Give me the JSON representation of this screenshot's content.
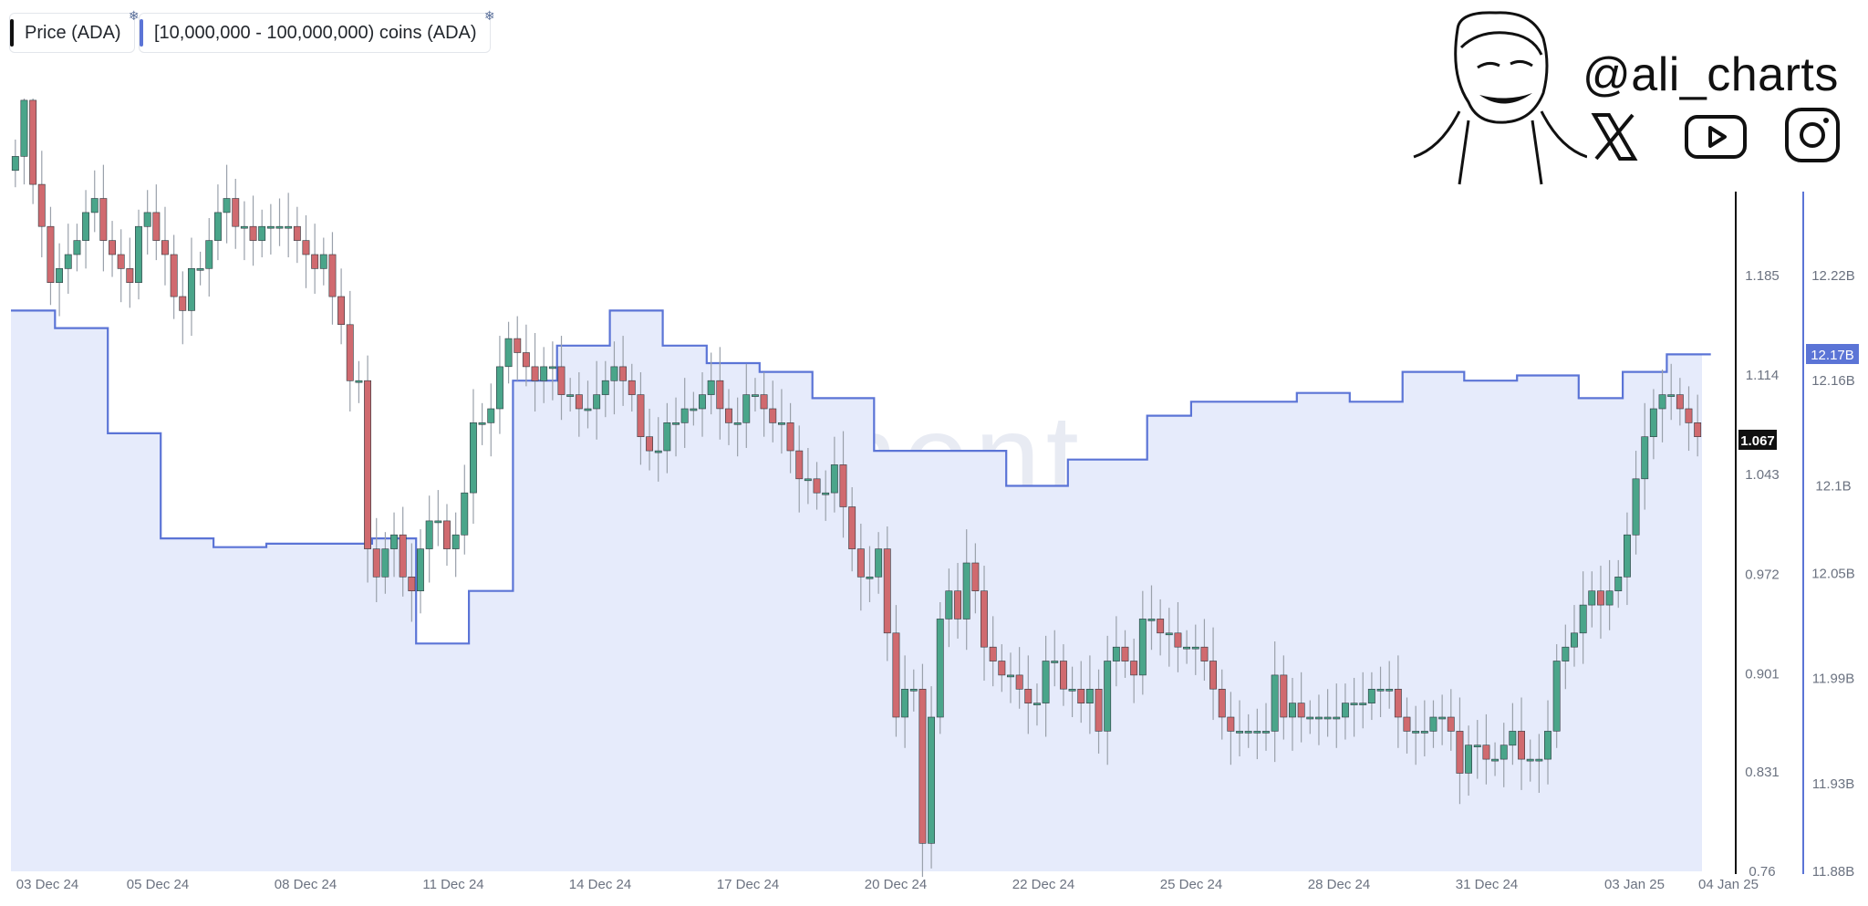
{
  "legend": {
    "price_label": "Price (ADA)",
    "holders_label": "[10,000,000 - 100,000,000) coins (ADA)",
    "price_color": "#111111",
    "holders_color": "#5b74d6"
  },
  "brand": {
    "handle": "@ali_charts",
    "icons": [
      "face-sketch-icon",
      "x-logo-icon",
      "youtube-icon",
      "instagram-icon"
    ]
  },
  "watermark": "santiment",
  "chart_data": {
    "type": "candlestick+area",
    "price_axis": {
      "ticks": [
        "1.185",
        "1.114",
        "1.043",
        "0.972",
        "0.901",
        "0.831",
        "0.76"
      ],
      "min": 0.76,
      "max": 1.185
    },
    "holders_axis": {
      "ticks": [
        "12.22B",
        "12.16B",
        "12.1B",
        "12.05B",
        "11.99B",
        "11.93B",
        "11.88B"
      ],
      "min": 11.88,
      "max": 12.22,
      "unit": "B"
    },
    "current_price_badge": "1.067",
    "current_holders_badge": "12.17B",
    "x_ticks": [
      "03 Dec 24",
      "05 Dec 24",
      "08 Dec 24",
      "11 Dec 24",
      "14 Dec 24",
      "17 Dec 24",
      "20 Dec 24",
      "22 Dec 24",
      "25 Dec 24",
      "28 Dec 24",
      "31 Dec 24",
      "03 Jan 25",
      "04 Jan 25"
    ],
    "candle_close": [
      1.27,
      1.31,
      1.25,
      1.22,
      1.18,
      1.19,
      1.2,
      1.21,
      1.23,
      1.24,
      1.21,
      1.2,
      1.19,
      1.18,
      1.22,
      1.23,
      1.21,
      1.2,
      1.17,
      1.16,
      1.19,
      1.19,
      1.21,
      1.23,
      1.24,
      1.22,
      1.22,
      1.21,
      1.22,
      1.22,
      1.22,
      1.22,
      1.21,
      1.2,
      1.19,
      1.2,
      1.17,
      1.15,
      1.11,
      1.11,
      0.99,
      0.97,
      0.99,
      1.0,
      0.97,
      0.96,
      0.99,
      1.01,
      1.01,
      0.99,
      1.0,
      1.03,
      1.08,
      1.08,
      1.09,
      1.12,
      1.14,
      1.13,
      1.12,
      1.11,
      1.12,
      1.12,
      1.1,
      1.1,
      1.09,
      1.09,
      1.1,
      1.11,
      1.12,
      1.11,
      1.1,
      1.07,
      1.06,
      1.06,
      1.08,
      1.08,
      1.09,
      1.09,
      1.1,
      1.11,
      1.09,
      1.08,
      1.08,
      1.1,
      1.1,
      1.09,
      1.08,
      1.08,
      1.06,
      1.04,
      1.04,
      1.03,
      1.03,
      1.05,
      1.02,
      0.99,
      0.97,
      0.97,
      0.99,
      0.93,
      0.87,
      0.89,
      0.89,
      0.78,
      0.87,
      0.94,
      0.96,
      0.94,
      0.98,
      0.96,
      0.92,
      0.91,
      0.9,
      0.9,
      0.89,
      0.88,
      0.88,
      0.91,
      0.91,
      0.89,
      0.89,
      0.88,
      0.89,
      0.86,
      0.91,
      0.92,
      0.91,
      0.9,
      0.94,
      0.94,
      0.93,
      0.93,
      0.92,
      0.92,
      0.92,
      0.91,
      0.89,
      0.87,
      0.86,
      0.86,
      0.86,
      0.86,
      0.86,
      0.9,
      0.87,
      0.88,
      0.87,
      0.87,
      0.87,
      0.87,
      0.87,
      0.88,
      0.88,
      0.88,
      0.89,
      0.89,
      0.89,
      0.87,
      0.86,
      0.86,
      0.86,
      0.87,
      0.87,
      0.86,
      0.83,
      0.85,
      0.85,
      0.84,
      0.84,
      0.85,
      0.86,
      0.84,
      0.84,
      0.84,
      0.86,
      0.91,
      0.92,
      0.93,
      0.95,
      0.96,
      0.95,
      0.96,
      0.97,
      1.0,
      1.04,
      1.07,
      1.09,
      1.1,
      1.1,
      1.09,
      1.08,
      1.07
    ],
    "holders_step": [
      {
        "i": 0,
        "v": 12.2
      },
      {
        "i": 5,
        "v": 12.19
      },
      {
        "i": 11,
        "v": 12.13
      },
      {
        "i": 17,
        "v": 12.07
      },
      {
        "i": 23,
        "v": 12.065
      },
      {
        "i": 29,
        "v": 12.067
      },
      {
        "i": 40,
        "v": 12.067
      },
      {
        "i": 41,
        "v": 12.07
      },
      {
        "i": 46,
        "v": 12.01
      },
      {
        "i": 52,
        "v": 12.04
      },
      {
        "i": 57,
        "v": 12.16
      },
      {
        "i": 62,
        "v": 12.18
      },
      {
        "i": 68,
        "v": 12.2
      },
      {
        "i": 74,
        "v": 12.18
      },
      {
        "i": 79,
        "v": 12.17
      },
      {
        "i": 85,
        "v": 12.165
      },
      {
        "i": 91,
        "v": 12.15
      },
      {
        "i": 98,
        "v": 12.12
      },
      {
        "i": 113,
        "v": 12.1
      },
      {
        "i": 120,
        "v": 12.115
      },
      {
        "i": 129,
        "v": 12.14
      },
      {
        "i": 134,
        "v": 12.148
      },
      {
        "i": 140,
        "v": 12.148
      },
      {
        "i": 146,
        "v": 12.153
      },
      {
        "i": 152,
        "v": 12.148
      },
      {
        "i": 158,
        "v": 12.165
      },
      {
        "i": 165,
        "v": 12.16
      },
      {
        "i": 171,
        "v": 12.163
      },
      {
        "i": 178,
        "v": 12.15
      },
      {
        "i": 183,
        "v": 12.165
      },
      {
        "i": 188,
        "v": 12.175
      },
      {
        "i": 193,
        "v": 12.175
      }
    ]
  }
}
